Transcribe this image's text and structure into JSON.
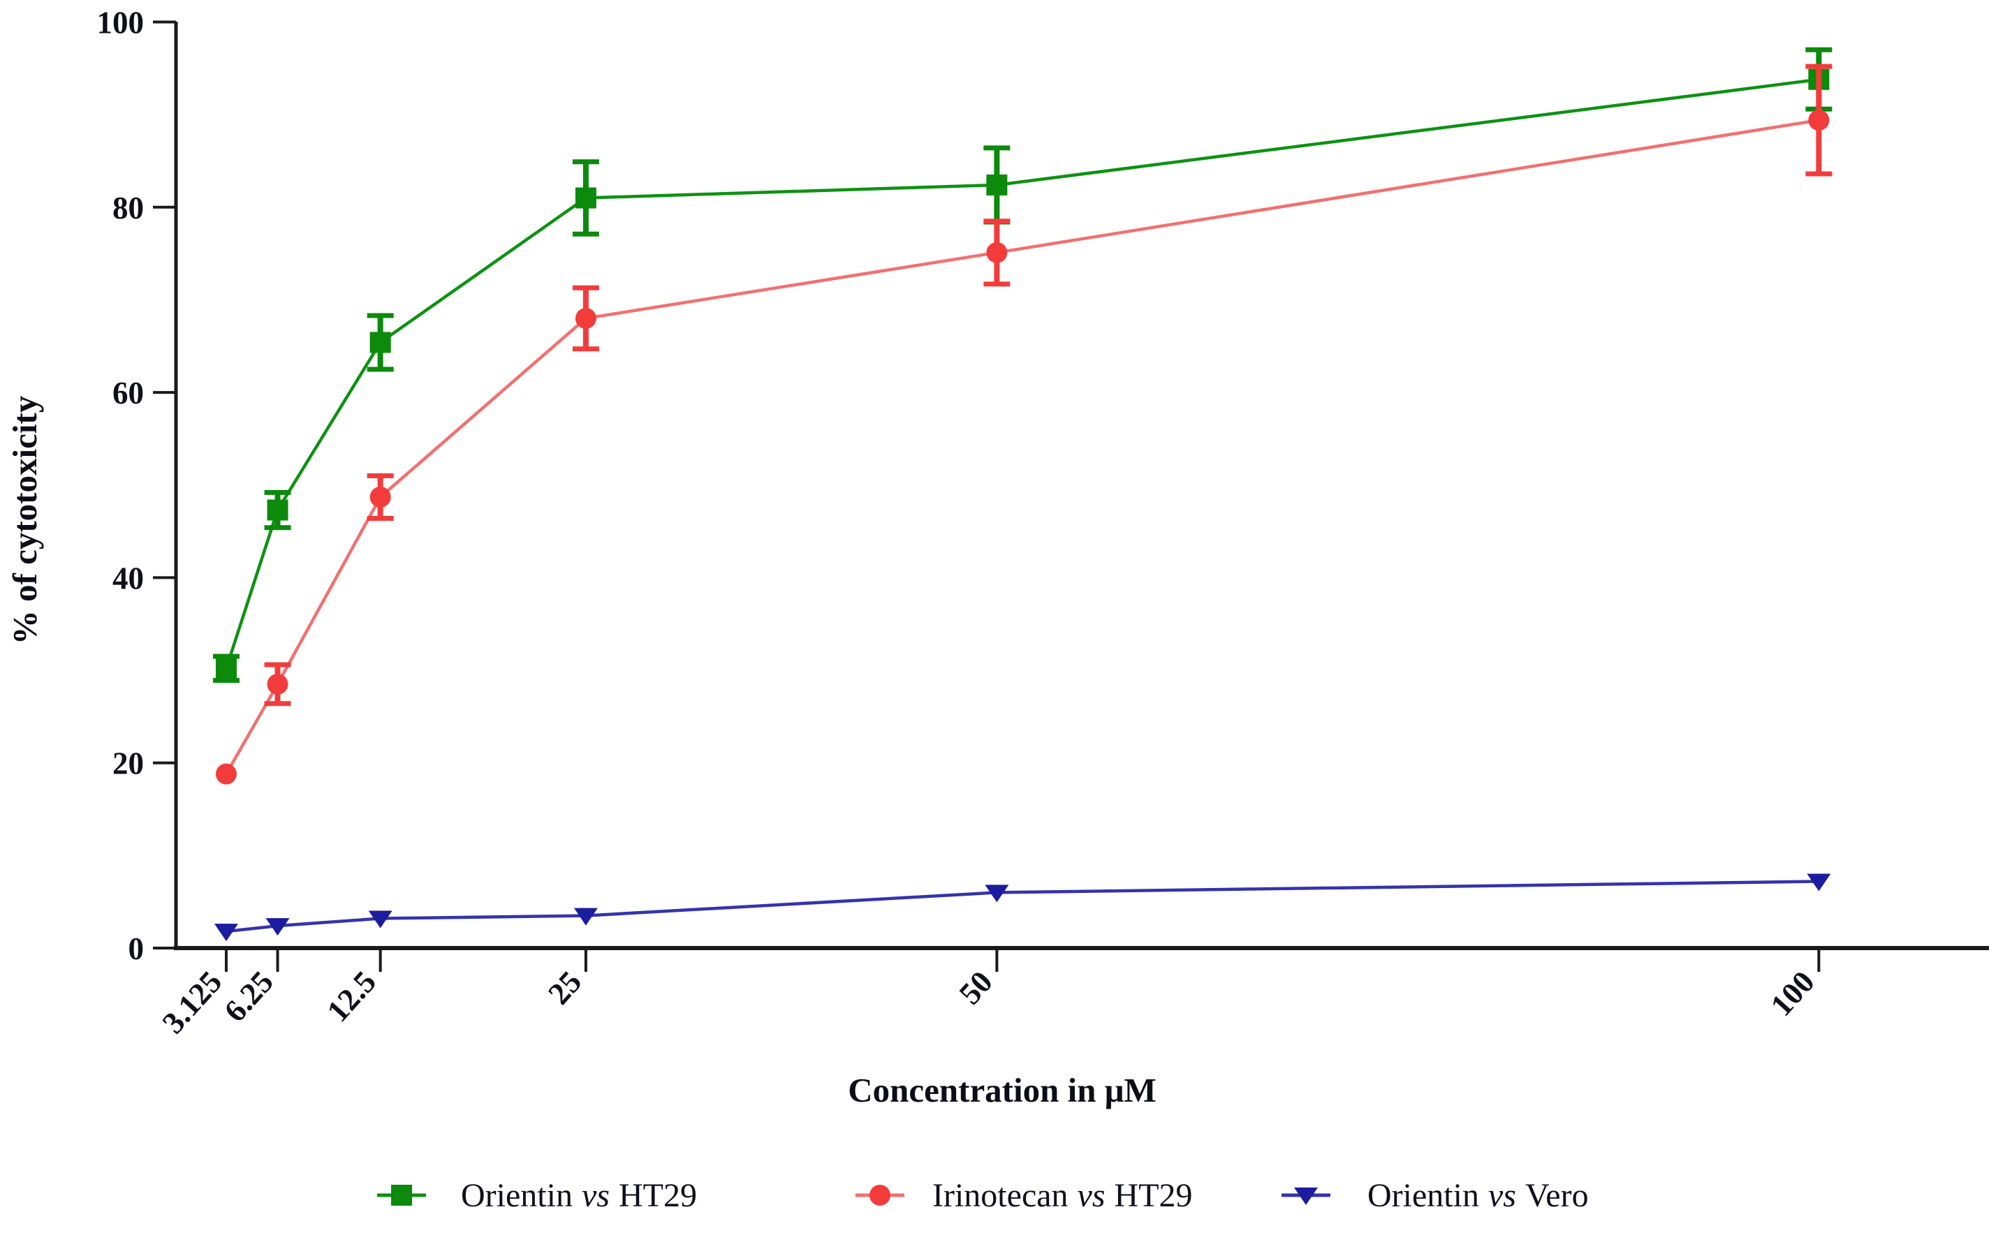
{
  "figure": {
    "y_axis_title": "% of cytotoxicity",
    "x_axis_title": "Concentration in μM"
  },
  "chart_data": {
    "type": "line",
    "x_scale": "linear",
    "x": [
      3.125,
      6.25,
      12.5,
      25,
      50,
      100
    ],
    "x_tick_labels": [
      "3.125",
      "6.25",
      "12.5",
      "25",
      "50",
      "100"
    ],
    "y_ticks": [
      0,
      20,
      40,
      60,
      80,
      100
    ],
    "y_tick_labels": [
      "0",
      "20",
      "40",
      "60",
      "80",
      "100"
    ],
    "ylim": [
      0,
      100
    ],
    "xlabel": "Concentration in μM",
    "ylabel": "% of cytotoxicity",
    "grid": false,
    "error_bars": true,
    "legend_position": "bottom",
    "series": [
      {
        "name": "Orientin vs HT29",
        "marker": "square",
        "marker_color": "#0b8a0b",
        "line_color": "#0d9212",
        "values": [
          30.2,
          47.3,
          65.4,
          81.0,
          82.4,
          93.8
        ],
        "errors": [
          1.3,
          1.9,
          2.9,
          3.9,
          4.0,
          3.2
        ]
      },
      {
        "name": "Irinotecan vs HT29",
        "marker": "circle",
        "marker_color": "#f23c3c",
        "line_color": "#f27070",
        "values": [
          18.8,
          28.5,
          48.7,
          68.0,
          75.1,
          89.4
        ],
        "errors": [
          0,
          2.1,
          2.3,
          3.3,
          3.4,
          5.8
        ]
      },
      {
        "name": "Orientin vs Vero",
        "marker": "triangle-down",
        "marker_color": "#1c1c9e",
        "line_color": "#3434ac",
        "values": [
          1.8,
          2.4,
          3.2,
          3.5,
          6.0,
          7.2
        ],
        "errors": [
          0,
          0,
          0,
          0,
          0,
          0
        ]
      }
    ]
  }
}
